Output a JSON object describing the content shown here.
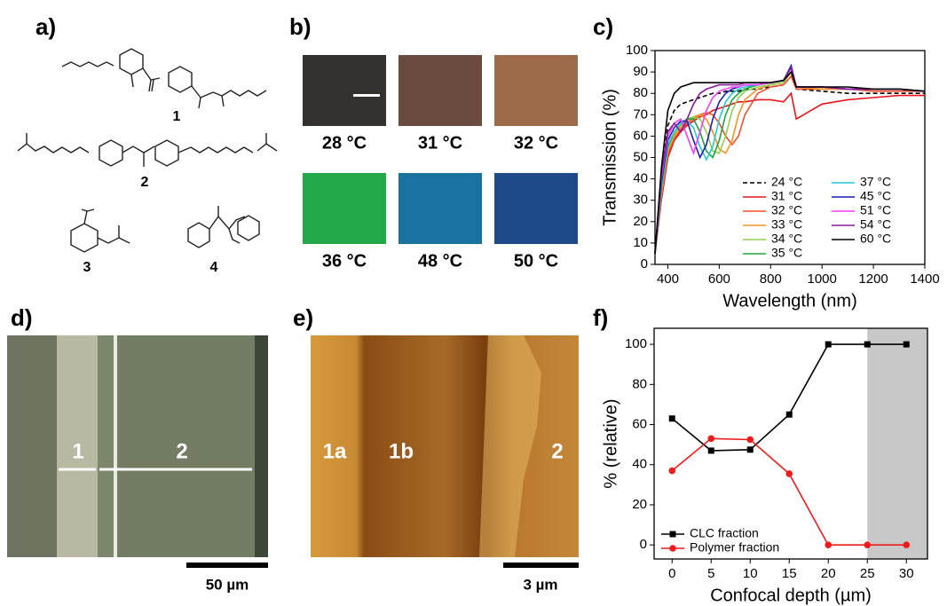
{
  "panel_labels": [
    "a)",
    "b)",
    "c)",
    "d)",
    "e)",
    "f)"
  ],
  "compounds": [
    "1",
    "2",
    "3",
    "4"
  ],
  "photos": [
    {
      "label": "28 °C",
      "color": "#33302d"
    },
    {
      "label": "31 °C",
      "color": "#6b4a40"
    },
    {
      "label": "32 °C",
      "color": "#9c6c4a"
    },
    {
      "label": "36 °C",
      "color": "#23a84a"
    },
    {
      "label": "48 °C",
      "color": "#1a72a0"
    },
    {
      "label": "50 °C",
      "color": "#1f4a8a"
    }
  ],
  "micrograph": {
    "labels": [
      "1",
      "2"
    ],
    "scale_bar": "50 µm"
  },
  "afm": {
    "labels": [
      "1a",
      "1b",
      "2"
    ],
    "scale_bar": "3 µm"
  },
  "chart_data": [
    {
      "type": "line",
      "xlabel": "Wavelength (nm)",
      "ylabel": "Transmission (%)",
      "x": [
        350,
        375,
        400,
        425,
        450,
        475,
        500,
        525,
        550,
        575,
        600,
        625,
        650,
        675,
        700,
        750,
        800,
        850,
        880,
        900,
        1000,
        1100,
        1200,
        1300,
        1400
      ],
      "xlim": [
        350,
        1400
      ],
      "xticks": [
        400,
        600,
        800,
        1000,
        1200,
        1400
      ],
      "ylim": [
        0,
        100
      ],
      "yticks": [
        0,
        10,
        20,
        30,
        40,
        50,
        60,
        70,
        80,
        90,
        100
      ],
      "legend": "lower right",
      "legend_columns": 2,
      "series": [
        {
          "name": "24 °C",
          "color": "#000000",
          "dash": true,
          "values": [
            5,
            40,
            65,
            72,
            75,
            76,
            77,
            78,
            79,
            80,
            80,
            81,
            81,
            81,
            82,
            82,
            83,
            84,
            88,
            82,
            81,
            80,
            80,
            80,
            80
          ]
        },
        {
          "name": "31 °C",
          "color": "#e8141c",
          "values": [
            5,
            30,
            50,
            58,
            62,
            65,
            67,
            69,
            70,
            72,
            73,
            74,
            75,
            76,
            76,
            77,
            77,
            76,
            80,
            68,
            75,
            77,
            78,
            79,
            79
          ]
        },
        {
          "name": "32 °C",
          "color": "#f4502a",
          "values": [
            5,
            32,
            52,
            59,
            63,
            66,
            68,
            70,
            71,
            70,
            66,
            60,
            56,
            60,
            70,
            80,
            83,
            84,
            88,
            82,
            82,
            82,
            81,
            81,
            81
          ]
        },
        {
          "name": "33 °C",
          "color": "#f7941d",
          "values": [
            5,
            33,
            53,
            60,
            64,
            67,
            69,
            70,
            68,
            62,
            54,
            52,
            58,
            70,
            77,
            82,
            84,
            85,
            90,
            83,
            82,
            82,
            82,
            82,
            81
          ]
        },
        {
          "name": "34 °C",
          "color": "#8fd14f",
          "values": [
            5,
            34,
            54,
            61,
            65,
            68,
            69,
            68,
            62,
            53,
            52,
            60,
            72,
            78,
            81,
            83,
            84,
            85,
            90,
            83,
            83,
            82,
            82,
            82,
            81
          ]
        },
        {
          "name": "35 °C",
          "color": "#1ea83c",
          "values": [
            5,
            35,
            55,
            62,
            66,
            68,
            68,
            62,
            53,
            50,
            58,
            70,
            77,
            80,
            82,
            84,
            85,
            86,
            92,
            83,
            83,
            82,
            82,
            82,
            81
          ]
        },
        {
          "name": "37 °C",
          "color": "#24c8d8",
          "values": [
            5,
            36,
            56,
            62,
            66,
            67,
            64,
            55,
            49,
            55,
            68,
            76,
            80,
            82,
            83,
            84,
            85,
            86,
            93,
            83,
            83,
            82,
            82,
            82,
            81
          ]
        },
        {
          "name": "45 °C",
          "color": "#1f1fb4",
          "values": [
            5,
            38,
            58,
            64,
            67,
            67,
            58,
            50,
            56,
            68,
            76,
            80,
            82,
            83,
            84,
            84,
            85,
            86,
            93,
            83,
            83,
            82,
            82,
            82,
            81
          ]
        },
        {
          "name": "51 °C",
          "color": "#f23ff2",
          "values": [
            5,
            40,
            60,
            66,
            68,
            60,
            52,
            62,
            72,
            78,
            81,
            82,
            83,
            83,
            84,
            84,
            85,
            86,
            92,
            83,
            83,
            82,
            82,
            82,
            81
          ]
        },
        {
          "name": "54 °C",
          "color": "#8a1a9a",
          "values": [
            5,
            42,
            62,
            66,
            62,
            68,
            75,
            80,
            82,
            83,
            84,
            84,
            84,
            84,
            85,
            85,
            85,
            86,
            92,
            83,
            83,
            82,
            82,
            82,
            81
          ]
        },
        {
          "name": "60 °C",
          "color": "#000000",
          "values": [
            5,
            45,
            72,
            80,
            83,
            84,
            85,
            85,
            85,
            85,
            85,
            85,
            85,
            85,
            85,
            85,
            85,
            86,
            90,
            83,
            83,
            83,
            82,
            82,
            81
          ]
        }
      ]
    },
    {
      "type": "line",
      "xlabel": "Confocal depth (µm)",
      "ylabel": "% (relative)",
      "x": [
        0,
        5,
        10,
        15,
        20,
        25,
        30
      ],
      "xlim": [
        -2.3,
        32.7
      ],
      "xticks": [
        0,
        5,
        10,
        15,
        20,
        25,
        30
      ],
      "ylim": [
        -7,
        108
      ],
      "yticks": [
        0,
        20,
        40,
        60,
        80,
        100
      ],
      "shade": [
        25,
        32.7
      ],
      "shade_color": "#c8c8c8",
      "legend": "lower left",
      "legend_columns": 1,
      "series": [
        {
          "name": "CLC fraction",
          "color": "#000000",
          "marker": "square",
          "values": [
            63,
            47,
            47.5,
            65,
            100,
            100,
            100
          ]
        },
        {
          "name": "Polymer fraction",
          "color": "#ee1c1c",
          "marker": "circle",
          "values": [
            37,
            53,
            52.5,
            35.5,
            0,
            0,
            0
          ]
        }
      ]
    }
  ]
}
